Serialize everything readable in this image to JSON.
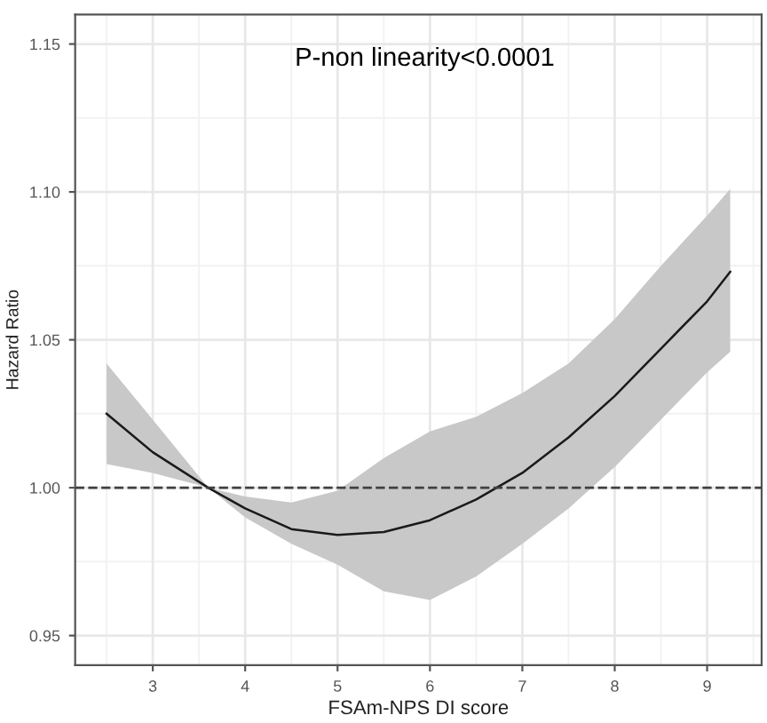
{
  "chart_data": {
    "type": "line",
    "xlabel": "FSAm-NPS DI score",
    "ylabel": "Hazard Ratio",
    "annotations": [
      "P-non linearity<0.0001"
    ],
    "xlim": [
      2.16,
      9.59
    ],
    "xticks": [
      3,
      4,
      5,
      6,
      7,
      8,
      9
    ],
    "ylim": [
      0.94,
      1.16
    ],
    "yticks": [
      {
        "value": 0.95,
        "label": "0.95"
      },
      {
        "value": 1.0,
        "label": "1.00"
      },
      {
        "value": 1.05,
        "label": "1.05"
      },
      {
        "value": 1.1,
        "label": "1.10"
      },
      {
        "value": 1.15,
        "label": "1.15"
      }
    ],
    "grid": true,
    "legend": false,
    "ref_lines": [
      {
        "axis": "y",
        "value": 1.0,
        "line_style": "dashed",
        "color": "#404040"
      }
    ],
    "series": [
      {
        "color": "#1a1a1a",
        "x": [
          2.5,
          3,
          3.6,
          4,
          4.5,
          5,
          5.5,
          6,
          6.5,
          7,
          7.5,
          8,
          8.5,
          9,
          9.25
        ],
        "values": [
          1.025,
          1.012,
          1.0,
          0.993,
          0.986,
          0.984,
          0.985,
          0.989,
          0.996,
          1.005,
          1.017,
          1.031,
          1.047,
          1.063,
          1.073
        ],
        "lower": [
          1.008,
          1.005,
          1.0,
          0.99,
          0.981,
          0.974,
          0.965,
          0.962,
          0.97,
          0.981,
          0.993,
          1.007,
          1.023,
          1.039,
          1.046
        ],
        "upper": [
          1.042,
          1.023,
          1.0,
          0.997,
          0.995,
          0.999,
          1.01,
          1.019,
          1.024,
          1.032,
          1.042,
          1.057,
          1.075,
          1.092,
          1.101
        ]
      }
    ]
  }
}
